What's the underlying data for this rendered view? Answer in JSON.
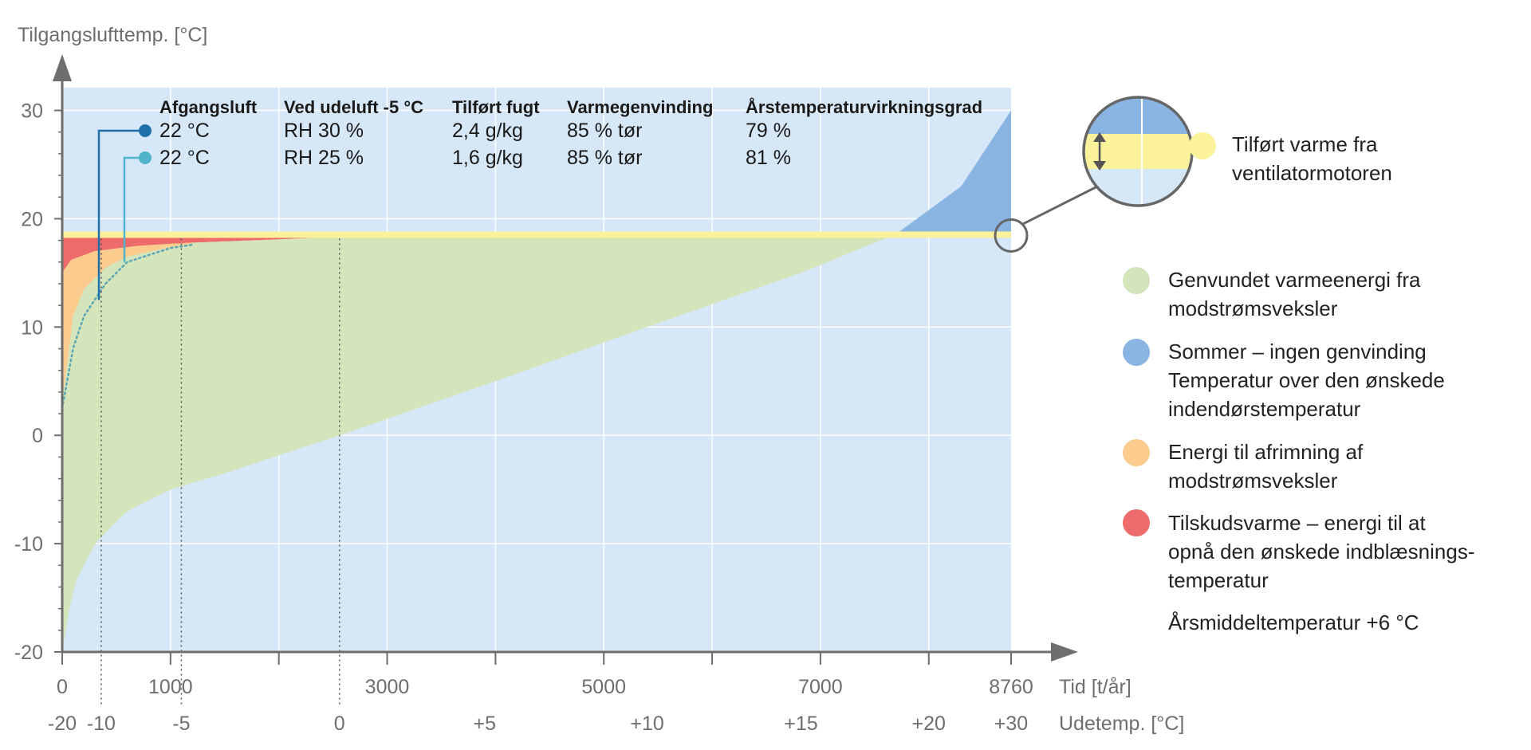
{
  "chart_data": {
    "type": "area",
    "ylabel": "Tilgangslufttemp. [°C]",
    "xlabel": "Tid [t/år]",
    "x2label": "Udetemp. [°C]",
    "xlim": [
      0,
      8760
    ],
    "ylim": [
      -20,
      30
    ],
    "x_ticks": [
      "0",
      "1000",
      "3000",
      "5000",
      "7000",
      "8760"
    ],
    "x_tick_values": [
      0,
      1000,
      3000,
      5000,
      7000,
      8760
    ],
    "x_minor_tick_values": [
      2000,
      4000,
      6000,
      8000
    ],
    "y_ticks": [
      "30",
      "20",
      "10",
      "0",
      "-10",
      "-20"
    ],
    "y_tick_values": [
      30,
      20,
      10,
      0,
      -10,
      -20
    ],
    "outdoor_ticks": [
      {
        "label": "-20",
        "hours": 0
      },
      {
        "label": "-10",
        "hours": 360
      },
      {
        "label": "-5",
        "hours": 1100
      },
      {
        "label": "0",
        "hours": 2560
      },
      {
        "label": "+5",
        "hours": 3900
      },
      {
        "label": "+10",
        "hours": 5400
      },
      {
        "label": "+15",
        "hours": 6820
      },
      {
        "label": "+20",
        "hours": 8000
      },
      {
        "label": "+30",
        "hours": 8760
      }
    ],
    "outdoor_markers_hours": [
      360,
      1100,
      2560
    ],
    "supply_temp_c": 18.6,
    "outdoor_duration_curve": {
      "hours": [
        0,
        100,
        300,
        600,
        1000,
        1500,
        2560,
        4000,
        5400,
        6820,
        7700,
        8300,
        8760
      ],
      "temp_c": [
        -20,
        -14,
        -10,
        -7,
        -5,
        -3.5,
        0,
        5,
        10,
        15,
        18.6,
        23,
        30
      ]
    },
    "recovered_curve_dotted": {
      "hours": [
        0,
        100,
        200,
        400,
        600,
        1000,
        1200
      ],
      "temp_c": [
        2.5,
        8,
        11,
        14,
        16,
        17.3,
        17.6
      ]
    },
    "defrost_curve": {
      "hours": [
        0,
        100,
        200,
        400,
        600,
        1000,
        1200
      ],
      "temp_c": [
        3,
        11,
        13.5,
        15.5,
        16.5,
        17.4,
        17.7
      ]
    },
    "supplementary_curve": {
      "hours": [
        0,
        80,
        300,
        700,
        1200,
        2000,
        2650
      ],
      "temp_c": [
        15,
        16.2,
        17,
        17.5,
        17.8,
        18.1,
        18.4
      ]
    },
    "table": {
      "headers": [
        "Afgangsluft",
        "Ved udeluft -5 °C",
        "Tilført fugt",
        "Varmegenvinding",
        "Årstemperaturvirkningsgrad"
      ],
      "rows": [
        {
          "color": "#1f6fa8",
          "cells": [
            "22 °C",
            "RH 30 %",
            "2,4 g/kg",
            "85 % tør",
            "79 %"
          ]
        },
        {
          "color": "#4fb3c9",
          "cells": [
            "22 °C",
            "RH 25 %",
            "1,6 g/kg",
            "85 % tør",
            "81 %"
          ]
        }
      ]
    },
    "legend": [
      {
        "key": "fan",
        "color": "#fdf29c",
        "lines": [
          "Tilført varme fra",
          "ventilatormotoren"
        ]
      },
      {
        "key": "recovered",
        "color": "#d4e4bb",
        "lines": [
          "Genvundet varmeenergi fra",
          "modstrømsveksler"
        ]
      },
      {
        "key": "summer",
        "color": "#8ab4e2",
        "lines": [
          "Sommer – ingen genvinding",
          "Temperatur over den ønskede",
          "indendørstemperatur"
        ]
      },
      {
        "key": "defrost",
        "color": "#fccb8e",
        "lines": [
          "Energi til afrimning af",
          "modstrømsveksler"
        ]
      },
      {
        "key": "supplementary",
        "color": "#ee6b6b",
        "lines": [
          "Tilskudsvarme – energi til at",
          "opnå den ønskede indblæsnings-",
          "temperatur"
        ]
      }
    ],
    "annual_mean_text": "Årsmiddeltemperatur +6 °C",
    "colors": {
      "background": "#d6e7f8",
      "grid": "#ffffff",
      "axis": "#6e6e6e",
      "recovered": "#d4e4bb",
      "summer": "#8ab4e2",
      "defrost": "#fccb8e",
      "supplementary": "#ee6b6b",
      "fan": "#fdf29c",
      "dotted_curve": "#5aa6b4"
    }
  }
}
